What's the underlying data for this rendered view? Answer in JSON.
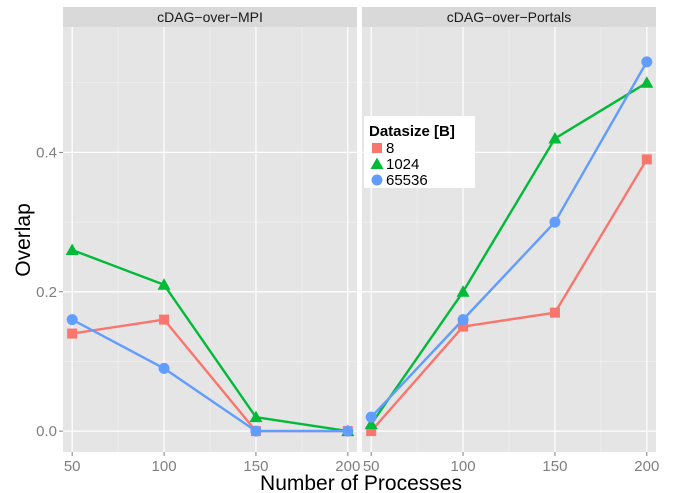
{
  "chart_data": {
    "type": "line",
    "xlabel": "Number of Processes",
    "ylabel": "Overlap",
    "x_ticks": [
      "50",
      "100",
      "150",
      "200"
    ],
    "y_ticks": [
      "0.0",
      "0.2",
      "0.4"
    ],
    "xlim": [
      45,
      205
    ],
    "ylim": [
      -0.03,
      0.58
    ],
    "legend": {
      "title": "Datasize [B]",
      "placement": "top-left of right panel"
    },
    "grid": true,
    "panels": [
      {
        "title": "cDAG−over−MPI",
        "x": [
          50,
          100,
          150,
          200
        ],
        "series": [
          {
            "name": "8",
            "color": "#F8766D",
            "marker": "square",
            "values": [
              0.14,
              0.16,
              0.0,
              0.0
            ]
          },
          {
            "name": "1024",
            "color": "#00BA38",
            "marker": "triangle",
            "values": [
              0.26,
              0.21,
              0.02,
              0.0
            ]
          },
          {
            "name": "65536",
            "color": "#619CFF",
            "marker": "circle",
            "values": [
              0.16,
              0.09,
              0.0,
              0.0
            ]
          }
        ]
      },
      {
        "title": "cDAG−over−Portals",
        "x": [
          50,
          100,
          150,
          200
        ],
        "series": [
          {
            "name": "8",
            "color": "#F8766D",
            "marker": "square",
            "values": [
              0.0,
              0.15,
              0.17,
              0.39
            ]
          },
          {
            "name": "1024",
            "color": "#00BA38",
            "marker": "triangle",
            "values": [
              0.01,
              0.2,
              0.42,
              0.5
            ]
          },
          {
            "name": "65536",
            "color": "#619CFF",
            "marker": "circle",
            "values": [
              0.02,
              0.16,
              0.3,
              0.53
            ]
          }
        ]
      }
    ]
  }
}
